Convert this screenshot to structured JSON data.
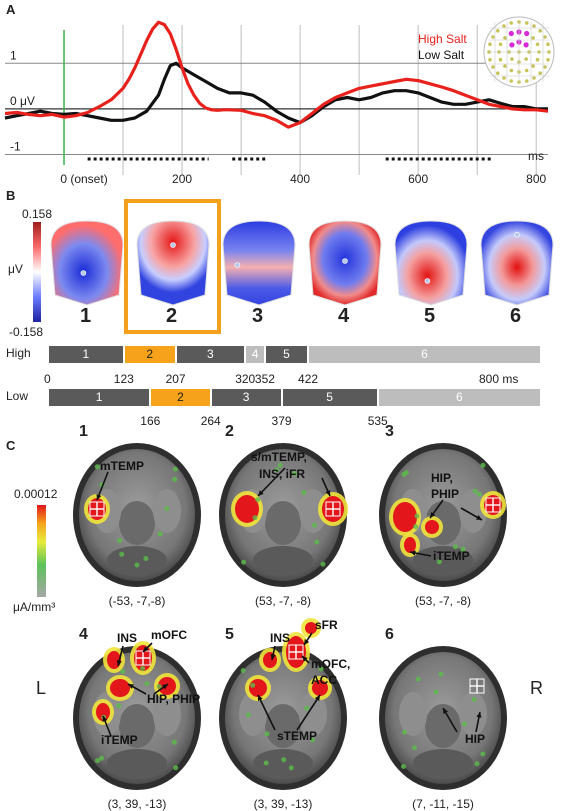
{
  "panels": {
    "a": "A",
    "b": "B",
    "c": "C"
  },
  "chart_data": {
    "type": "line",
    "xlabel": "ms",
    "ylabel_ticks": [
      "1",
      "0 μV",
      "-1"
    ],
    "x_tick_labels": [
      "0 (onset)",
      "200",
      "400",
      "600",
      "800"
    ],
    "x_ticks": [
      0,
      200,
      400,
      600,
      800
    ],
    "xlim": [
      -100,
      820
    ],
    "ylim": [
      -1.45,
      1.95
    ],
    "legend": {
      "placement": "top-right",
      "entries": [
        "High Salt",
        "Low Salt"
      ]
    },
    "colors": {
      "high": "#e8211c",
      "low": "#111111",
      "onset": "#3cb34a"
    },
    "significance_intervals": [
      [
        40,
        245
      ],
      [
        285,
        345
      ],
      [
        545,
        725
      ]
    ],
    "series": [
      {
        "name": "High Salt",
        "color": "#e8211c",
        "x": [
          -100,
          -80,
          -60,
          -40,
          -20,
          0,
          20,
          40,
          60,
          80,
          100,
          110,
          120,
          130,
          140,
          150,
          160,
          170,
          180,
          190,
          200,
          210,
          220,
          230,
          240,
          250,
          260,
          270,
          280,
          300,
          320,
          340,
          360,
          380,
          400,
          420,
          440,
          460,
          480,
          500,
          520,
          540,
          560,
          580,
          600,
          620,
          640,
          660,
          680,
          700,
          720,
          740,
          760,
          780,
          800,
          820
        ],
        "y": [
          -0.1,
          -0.08,
          -0.12,
          -0.15,
          -0.12,
          -0.18,
          -0.15,
          -0.08,
          0.05,
          0.2,
          0.45,
          0.65,
          0.9,
          1.2,
          1.5,
          1.75,
          1.9,
          1.85,
          1.65,
          1.3,
          0.9,
          0.55,
          0.3,
          0.12,
          0.02,
          -0.02,
          -0.03,
          -0.02,
          -0.02,
          -0.03,
          -0.1,
          -0.15,
          -0.25,
          -0.4,
          -0.3,
          -0.1,
          0.1,
          0.25,
          0.35,
          0.45,
          0.5,
          0.55,
          0.6,
          0.65,
          0.62,
          0.55,
          0.48,
          0.4,
          0.3,
          0.2,
          0.1,
          0.05,
          0.0,
          -0.02,
          -0.02,
          -0.05
        ]
      },
      {
        "name": "Low Salt",
        "color": "#111111",
        "x": [
          -100,
          -80,
          -60,
          -40,
          -20,
          0,
          20,
          40,
          60,
          80,
          100,
          120,
          140,
          160,
          170,
          180,
          190,
          200,
          220,
          240,
          260,
          280,
          300,
          320,
          340,
          360,
          380,
          400,
          420,
          440,
          460,
          480,
          500,
          520,
          540,
          560,
          580,
          600,
          620,
          640,
          660,
          680,
          700,
          720,
          740,
          760,
          780,
          800,
          820
        ],
        "y": [
          -0.2,
          -0.15,
          -0.1,
          -0.05,
          -0.1,
          -0.12,
          -0.1,
          -0.15,
          -0.2,
          -0.25,
          -0.25,
          -0.2,
          -0.05,
          0.3,
          0.65,
          0.95,
          1.0,
          0.9,
          0.75,
          0.6,
          0.45,
          0.35,
          0.35,
          0.3,
          0.15,
          -0.05,
          -0.2,
          -0.3,
          -0.15,
          0.05,
          0.2,
          0.25,
          0.2,
          0.25,
          0.35,
          0.4,
          0.4,
          0.35,
          0.25,
          0.15,
          0.1,
          0.1,
          0.15,
          0.2,
          0.12,
          0.05,
          0.05,
          0.0,
          0.0
        ]
      }
    ]
  },
  "topomaps": {
    "scale_max": "0.158",
    "scale_min": "-0.158",
    "unit": "μV",
    "labels": [
      "1",
      "2",
      "3",
      "4",
      "5",
      "6"
    ],
    "highlight_color": "#f3a01d"
  },
  "microstates": {
    "unit_label": "800 ms",
    "high": {
      "label": "High",
      "segments": [
        {
          "label": "1",
          "start": 0,
          "end": 123
        },
        {
          "label": "2",
          "start": 123,
          "end": 207
        },
        {
          "label": "3",
          "start": 207,
          "end": 320
        },
        {
          "label": "4",
          "start": 320,
          "end": 352
        },
        {
          "label": "5",
          "start": 352,
          "end": 422
        },
        {
          "label": "6",
          "start": 422,
          "end": 800
        }
      ],
      "boundaries": [
        "0",
        "123",
        "207",
        "320",
        "352",
        "422"
      ]
    },
    "low": {
      "label": "Low",
      "segments": [
        {
          "label": "1",
          "start": 0,
          "end": 166
        },
        {
          "label": "2",
          "start": 166,
          "end": 264
        },
        {
          "label": "3",
          "start": 264,
          "end": 379
        },
        {
          "label": "5",
          "start": 379,
          "end": 535
        },
        {
          "label": "6",
          "start": 535,
          "end": 800
        }
      ],
      "boundaries": [
        "166",
        "264",
        "379",
        "535"
      ]
    },
    "colors": {
      "dark": "#5a5a5a",
      "light": "#bdbdbd",
      "highlight": "#f7a21b"
    }
  },
  "sources": {
    "scale_max": "0.00012",
    "unit": "μA/mm³",
    "side_left": "L",
    "side_right": "R",
    "brains": [
      {
        "num": "1",
        "coord": "(-53, -7,-8)",
        "labels": [
          "mTEMP"
        ]
      },
      {
        "num": "2",
        "coord": "(53, -7, -8)",
        "labels": [
          "s/mTEMP,",
          "INS, iFR"
        ]
      },
      {
        "num": "3",
        "coord": "(53, -7, -8)",
        "labels": [
          "HIP,",
          "PHIP",
          "iTEMP"
        ]
      },
      {
        "num": "4",
        "coord": "(3, 39, -13)",
        "labels": [
          "INS",
          "mOFC",
          "HIP, PHIP",
          "iTEMP"
        ]
      },
      {
        "num": "5",
        "coord": "(3, 39, -13)",
        "labels": [
          "sFR",
          "INS",
          "mOFC,",
          "ACC",
          "sTEMP"
        ]
      },
      {
        "num": "6",
        "coord": "(7, -11, -15)",
        "labels": [
          "HIP"
        ]
      }
    ]
  }
}
